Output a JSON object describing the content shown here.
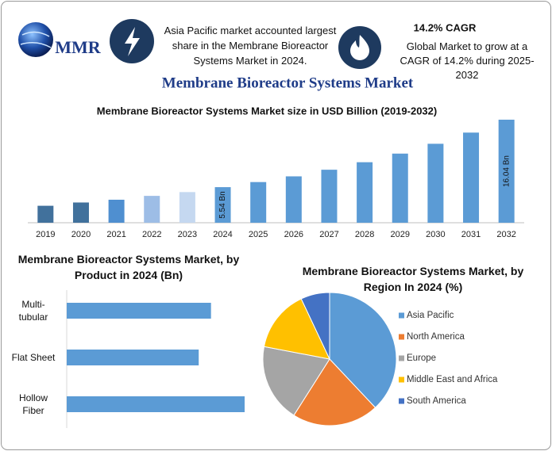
{
  "header": {
    "logo": "MMR",
    "highlight": "Asia Pacific market accounted largest share in the Membrane Bioreactor Systems Market in 2024.",
    "cagr_title": "14.2% CAGR",
    "cagr_text": "Global Market to grow at a CAGR of 14.2% during 2025-2032",
    "title": "Membrane Bioreactor Systems Market"
  },
  "chart_data": [
    {
      "type": "bar",
      "title": "Membrane Bioreactor Systems Market size in USD Billion (2019-2032)",
      "categories": [
        "2019",
        "2020",
        "2021",
        "2022",
        "2023",
        "2024",
        "2025",
        "2026",
        "2027",
        "2028",
        "2029",
        "2030",
        "2031",
        "2032"
      ],
      "values": [
        2.64,
        3.15,
        3.58,
        4.18,
        4.77,
        5.54,
        6.33,
        7.22,
        8.25,
        9.42,
        10.76,
        12.29,
        14.03,
        16.04
      ],
      "value_labels": [
        null,
        null,
        null,
        null,
        null,
        "5.54 Bn",
        null,
        null,
        null,
        null,
        null,
        null,
        null,
        "16.04 Bn"
      ],
      "colors": [
        "#41719c",
        "#41719c",
        "#4f8fd0",
        "#9dbde6",
        "#c5d8f0",
        "#5b9bd5",
        "#5b9bd5",
        "#5b9bd5",
        "#5b9bd5",
        "#5b9bd5",
        "#5b9bd5",
        "#5b9bd5",
        "#5b9bd5",
        "#5b9bd5"
      ]
    },
    {
      "type": "hbar",
      "title": "Membrane Bioreactor Systems Market, by Product in 2024 (Bn)",
      "categories": [
        "Multi-tubular",
        "Flat Sheet",
        "Hollow Fiber"
      ],
      "values": [
        1.76,
        1.61,
        2.17
      ],
      "color": "#5b9bd5"
    },
    {
      "type": "pie",
      "title": "Membrane Bioreactor Systems Market, by Region In 2024 (%)",
      "categories": [
        "Asia Pacific",
        "North America",
        "Europe",
        "Middle East and Africa",
        "South America"
      ],
      "values": [
        38,
        21,
        19,
        15,
        7
      ],
      "colors": [
        "#5b9bd5",
        "#ed7d31",
        "#a5a5a5",
        "#ffc000",
        "#4472c4"
      ],
      "legend": "right"
    }
  ]
}
